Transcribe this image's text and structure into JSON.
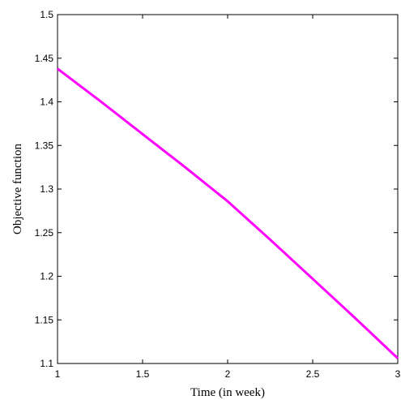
{
  "chart_data": {
    "type": "line",
    "title": "",
    "xlabel": "Time (in week)",
    "ylabel": "Objective function",
    "xlim": [
      1,
      3
    ],
    "ylim": [
      1.1,
      1.5
    ],
    "xticks": [
      "1",
      "1.5",
      "2",
      "2.5",
      "3"
    ],
    "yticks": [
      "1.1",
      "1.15",
      "1.2",
      "1.25",
      "1.3",
      "1.35",
      "1.4",
      "1.45",
      "1.5"
    ],
    "grid": false,
    "legend": "none",
    "series": [
      {
        "color": "#ff00ff",
        "x": [
          1,
          1.25,
          1.5,
          1.75,
          2,
          2.25,
          2.5,
          2.75,
          3
        ],
        "y": [
          1.438,
          1.401,
          1.363,
          1.325,
          1.286,
          1.242,
          1.197,
          1.152,
          1.106
        ]
      }
    ]
  }
}
